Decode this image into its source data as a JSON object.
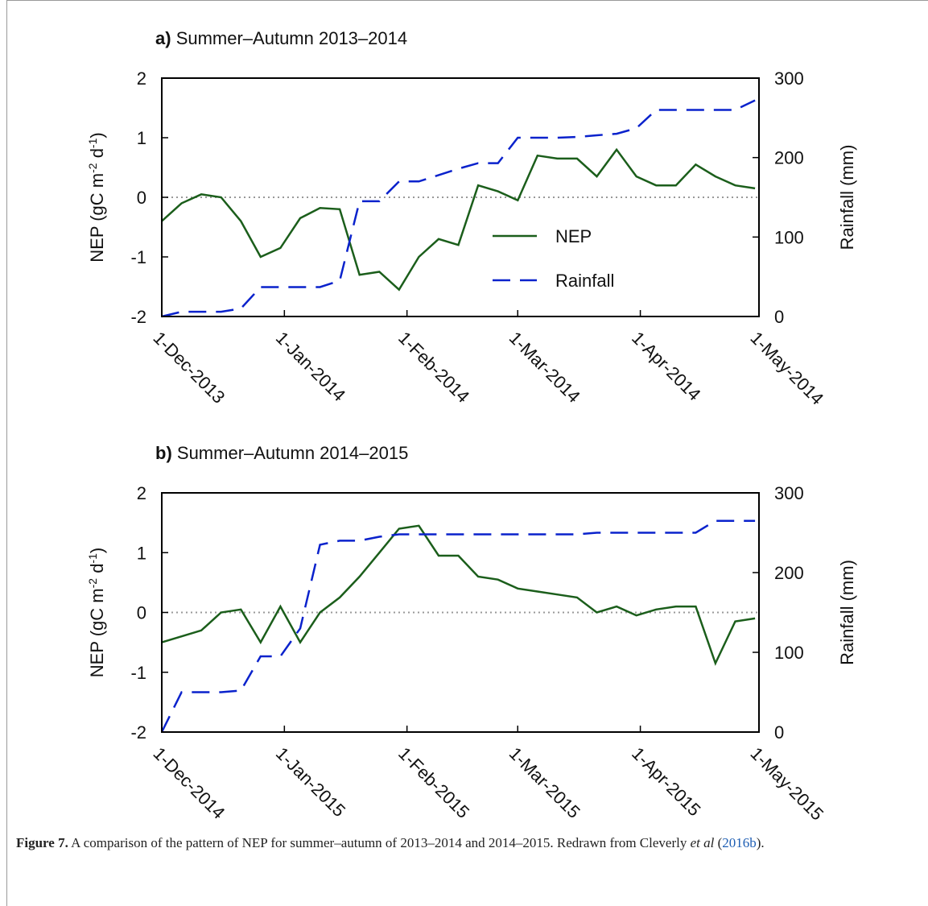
{
  "chart_data": [
    {
      "type": "line",
      "panel_label": "a)",
      "title": "Summer–Autumn 2013–2014",
      "ylabel_parts": [
        "NEP (gC m",
        "-2",
        " d",
        "-1",
        ")"
      ],
      "y2label": "Rainfall (mm)",
      "x": [
        "2013-12-01",
        "2013-12-06",
        "2013-12-11",
        "2013-12-16",
        "2013-12-21",
        "2013-12-26",
        "2013-12-31",
        "2014-01-05",
        "2014-01-10",
        "2014-01-15",
        "2014-01-20",
        "2014-01-25",
        "2014-01-30",
        "2014-02-04",
        "2014-02-09",
        "2014-02-14",
        "2014-02-19",
        "2014-02-24",
        "2014-03-01",
        "2014-03-06",
        "2014-03-11",
        "2014-03-16",
        "2014-03-21",
        "2014-03-26",
        "2014-03-31",
        "2014-04-05",
        "2014-04-10",
        "2014-04-15",
        "2014-04-20",
        "2014-04-25",
        "2014-04-30"
      ],
      "xlim": [
        "2013-12-01",
        "2014-05-01"
      ],
      "xticks": [
        {
          "value": "2013-12-01",
          "label": "1-Dec-2013"
        },
        {
          "value": "2014-01-01",
          "label": "1-Jan-2014"
        },
        {
          "value": "2014-02-01",
          "label": "1-Feb-2014"
        },
        {
          "value": "2014-03-01",
          "label": "1-Mar-2014"
        },
        {
          "value": "2014-04-01",
          "label": "1-Apr-2014"
        },
        {
          "value": "2014-05-01",
          "label": "1-May-2014"
        }
      ],
      "ylim": [
        -2,
        2
      ],
      "yticks": [
        -2,
        -1,
        0,
        1,
        2
      ],
      "y2lim": [
        0,
        300
      ],
      "y2ticks": [
        0,
        100,
        200,
        300
      ],
      "zero_line": true,
      "legend": "center-right",
      "series": [
        {
          "name": "NEP",
          "color": "#1b5e1b",
          "dash": false,
          "values": [
            -0.4,
            -0.1,
            0.05,
            0.0,
            -0.4,
            -1.0,
            -0.85,
            -0.35,
            -0.18,
            -0.2,
            -1.3,
            -1.25,
            -1.55,
            -1.0,
            -0.7,
            -0.8,
            0.2,
            0.1,
            -0.05,
            0.7,
            0.65,
            0.65,
            0.35,
            0.8,
            0.35,
            0.2,
            0.2,
            0.55,
            0.35,
            0.2,
            0.15
          ]
        },
        {
          "name": "Rainfall",
          "color": "#0a22cc",
          "dash": true,
          "axis": "y2",
          "values": [
            0,
            6,
            6,
            6,
            10,
            37,
            37,
            37,
            37,
            45,
            145,
            145,
            170,
            170,
            178,
            186,
            193,
            193,
            225,
            225,
            225,
            226,
            228,
            230,
            237,
            260,
            260,
            260,
            260,
            260,
            272
          ]
        }
      ]
    },
    {
      "type": "line",
      "panel_label": "b)",
      "title": "Summer–Autumn 2014–2015",
      "ylabel_parts": [
        "NEP (gC m",
        "-2",
        " d",
        "-1",
        ")"
      ],
      "y2label": "Rainfall (mm)",
      "x": [
        "2014-12-01",
        "2014-12-06",
        "2014-12-11",
        "2014-12-16",
        "2014-12-21",
        "2014-12-26",
        "2014-12-31",
        "2015-01-05",
        "2015-01-10",
        "2015-01-15",
        "2015-01-20",
        "2015-01-25",
        "2015-01-30",
        "2015-02-04",
        "2015-02-09",
        "2015-02-14",
        "2015-02-19",
        "2015-02-24",
        "2015-03-01",
        "2015-03-06",
        "2015-03-11",
        "2015-03-16",
        "2015-03-21",
        "2015-03-26",
        "2015-03-31",
        "2015-04-05",
        "2015-04-10",
        "2015-04-15",
        "2015-04-20",
        "2015-04-25",
        "2015-04-30"
      ],
      "xlim": [
        "2014-12-01",
        "2015-05-01"
      ],
      "xticks": [
        {
          "value": "2014-12-01",
          "label": "1-Dec-2014"
        },
        {
          "value": "2015-01-01",
          "label": "1-Jan-2015"
        },
        {
          "value": "2015-02-01",
          "label": "1-Feb-2015"
        },
        {
          "value": "2015-03-01",
          "label": "1-Mar-2015"
        },
        {
          "value": "2015-04-01",
          "label": "1-Apr-2015"
        },
        {
          "value": "2015-05-01",
          "label": "1-May-2015"
        }
      ],
      "ylim": [
        -2,
        2
      ],
      "yticks": [
        -2,
        -1,
        0,
        1,
        2
      ],
      "y2lim": [
        0,
        300
      ],
      "y2ticks": [
        0,
        100,
        200,
        300
      ],
      "zero_line": true,
      "series": [
        {
          "name": "NEP",
          "color": "#1b5e1b",
          "dash": false,
          "values": [
            -0.5,
            -0.4,
            -0.3,
            0.0,
            0.05,
            -0.5,
            0.1,
            -0.5,
            0.0,
            0.25,
            0.6,
            1.0,
            1.4,
            1.45,
            0.95,
            0.95,
            0.6,
            0.55,
            0.4,
            0.35,
            0.3,
            0.25,
            0.0,
            0.1,
            -0.05,
            0.05,
            0.1,
            0.1,
            -0.85,
            -0.15,
            -0.1
          ]
        },
        {
          "name": "Rainfall",
          "color": "#0a22cc",
          "dash": true,
          "axis": "y2",
          "values": [
            0,
            50,
            50,
            50,
            52,
            95,
            95,
            130,
            235,
            240,
            240,
            245,
            248,
            248,
            248,
            248,
            248,
            248,
            248,
            248,
            248,
            248,
            250,
            250,
            250,
            250,
            250,
            250,
            265,
            265,
            265
          ]
        }
      ]
    }
  ],
  "caption": {
    "label": "Figure 7.",
    "text": " A comparison of the pattern of NEP for summer–autumn of 2013–2014 and 2014–2015. Redrawn from Cleverly ",
    "etal": "et al",
    "open": " (",
    "ref": "2016b",
    "close": ")."
  }
}
